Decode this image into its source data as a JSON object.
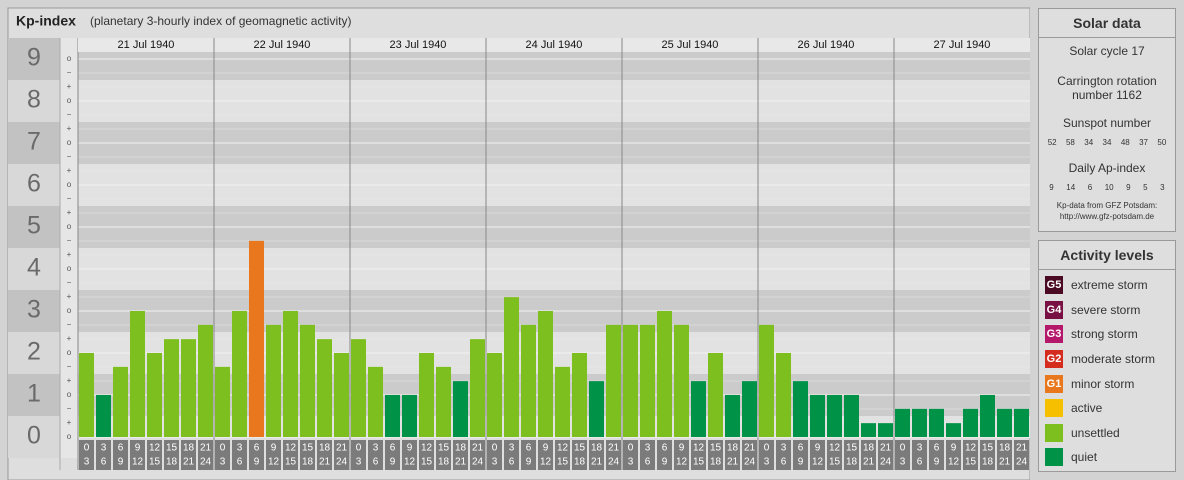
{
  "chart_data": {
    "type": "bar",
    "title": "Kp-index",
    "subtitle": "(planetary 3-hourly index of geomagnetic activity)",
    "categories": [
      "21 Jul 1940",
      "22 Jul 1940",
      "23 Jul 1940",
      "24 Jul 1940",
      "25 Jul 1940",
      "26 Jul 1940",
      "27 Jul 1940"
    ],
    "values": [
      [
        2,
        1,
        1.67,
        3,
        2,
        2.33,
        2.33,
        2.67
      ],
      [
        1.67,
        3,
        4.67,
        2.67,
        3,
        2.67,
        2.33,
        2
      ],
      [
        2.33,
        1.67,
        1,
        1,
        2,
        1.67,
        1.33,
        2.33
      ],
      [
        2,
        3.33,
        2.67,
        3,
        1.67,
        2,
        1.33,
        2.67
      ],
      [
        2.67,
        2.67,
        3,
        2.67,
        1.33,
        2,
        1,
        1.33
      ],
      [
        2.67,
        2,
        1.33,
        1,
        1,
        1,
        0.33,
        0.33
      ],
      [
        0.67,
        0.67,
        0.67,
        0.33,
        0.67,
        1,
        0.67,
        0.67
      ]
    ],
    "colors": [
      [
        "#7dbf1f",
        "#009247",
        "#7dbf1f",
        "#7dbf1f",
        "#7dbf1f",
        "#7dbf1f",
        "#7dbf1f",
        "#7dbf1f"
      ],
      [
        "#7dbf1f",
        "#7dbf1f",
        "#e8771e",
        "#7dbf1f",
        "#7dbf1f",
        "#7dbf1f",
        "#7dbf1f",
        "#7dbf1f"
      ],
      [
        "#7dbf1f",
        "#7dbf1f",
        "#009247",
        "#009247",
        "#7dbf1f",
        "#7dbf1f",
        "#009247",
        "#7dbf1f"
      ],
      [
        "#7dbf1f",
        "#7dbf1f",
        "#7dbf1f",
        "#7dbf1f",
        "#7dbf1f",
        "#7dbf1f",
        "#009247",
        "#7dbf1f"
      ],
      [
        "#7dbf1f",
        "#7dbf1f",
        "#7dbf1f",
        "#7dbf1f",
        "#009247",
        "#7dbf1f",
        "#009247",
        "#009247"
      ],
      [
        "#7dbf1f",
        "#7dbf1f",
        "#009247",
        "#009247",
        "#009247",
        "#009247",
        "#009247",
        "#009247"
      ],
      [
        "#009247",
        "#009247",
        "#009247",
        "#009247",
        "#009247",
        "#009247",
        "#009247",
        "#009247"
      ]
    ],
    "hour_start": [
      0,
      3,
      6,
      9,
      12,
      15,
      18,
      21
    ],
    "hour_end": [
      3,
      6,
      9,
      12,
      15,
      18,
      21,
      24
    ],
    "ylim": [
      0,
      9.5
    ],
    "yticks": [
      0,
      1,
      2,
      3,
      4,
      5,
      6,
      7,
      8,
      9
    ],
    "ysub_labels": [
      "−",
      "o",
      "+"
    ],
    "grid": true,
    "solar": {
      "title": "Solar data",
      "cycle": "Solar cycle 17",
      "carrington": "Carrington rotation number 1162",
      "sunspot_title": "Sunspot number",
      "sunspot": [
        52,
        58,
        34,
        34,
        48,
        37,
        50
      ],
      "ap_title": "Daily Ap-index",
      "ap": [
        9,
        14,
        6,
        10,
        9,
        5,
        3
      ],
      "source": "Kp-data from GFZ Potsdam:",
      "url": "http://www.gfz-potsdam.de"
    },
    "legend_title": "Activity levels",
    "legend": [
      {
        "badge": "G5",
        "label": "extreme storm",
        "color": "#4a0a24"
      },
      {
        "badge": "G4",
        "label": "severe storm",
        "color": "#781043"
      },
      {
        "badge": "G3",
        "label": "strong storm",
        "color": "#b5186a"
      },
      {
        "badge": "G2",
        "label": "moderate storm",
        "color": "#d42d1e"
      },
      {
        "badge": "G1",
        "label": "minor storm",
        "color": "#e8771e"
      },
      {
        "label": "active",
        "color": "#f6c000"
      },
      {
        "label": "unsettled",
        "color": "#7dbf1f"
      },
      {
        "label": "quiet",
        "color": "#009247"
      }
    ]
  }
}
